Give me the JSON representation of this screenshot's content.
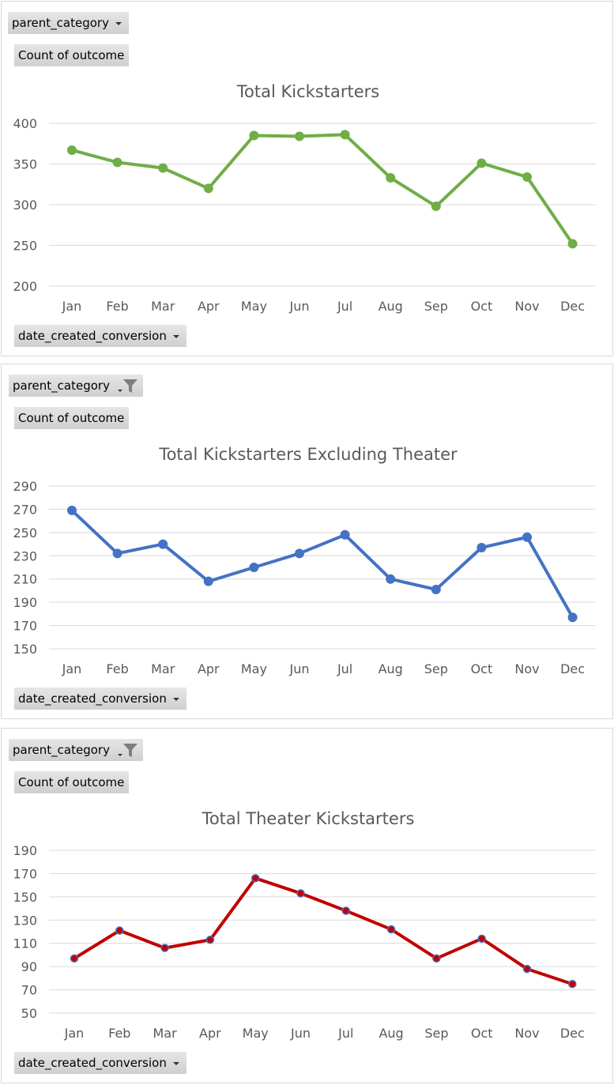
{
  "filters": {
    "parent_category": "parent_category",
    "count": "Count of outcome",
    "date": "date_created_conversion"
  },
  "chart_data": [
    {
      "type": "line",
      "title": "Total Kickstarters",
      "color": "#70ad47",
      "marker_fill": "#70ad47",
      "marker_stroke": "#70ad47",
      "filtered": false,
      "categories": [
        "Jan",
        "Feb",
        "Mar",
        "Apr",
        "May",
        "Jun",
        "Jul",
        "Aug",
        "Sep",
        "Oct",
        "Nov",
        "Dec"
      ],
      "values": [
        367,
        352,
        345,
        320,
        385,
        384,
        386,
        333,
        298,
        351,
        334,
        252
      ],
      "ylim": [
        200,
        400
      ],
      "yticks": [
        200,
        250,
        300,
        350,
        400
      ],
      "grid": true,
      "legend": "none"
    },
    {
      "type": "line",
      "title": "Total Kickstarters Excluding Theater",
      "color": "#4472c4",
      "marker_fill": "#4472c4",
      "marker_stroke": "#4472c4",
      "filtered": true,
      "categories": [
        "Jan",
        "Feb",
        "Mar",
        "Apr",
        "May",
        "Jun",
        "Jul",
        "Aug",
        "Sep",
        "Oct",
        "Nov",
        "Dec"
      ],
      "values": [
        269,
        232,
        240,
        208,
        220,
        232,
        248,
        210,
        201,
        237,
        246,
        177
      ],
      "ylim": [
        150,
        290
      ],
      "yticks": [
        150,
        170,
        190,
        210,
        230,
        250,
        270,
        290
      ],
      "grid": true,
      "legend": "none"
    },
    {
      "type": "line",
      "title": "Total Theater Kickstarters",
      "color": "#c00000",
      "marker_fill": "#c00000",
      "marker_stroke": "#4472c4",
      "filtered": true,
      "categories": [
        "Jan",
        "Feb",
        "Mar",
        "Apr",
        "May",
        "Jun",
        "Jul",
        "Aug",
        "Sep",
        "Oct",
        "Nov",
        "Dec"
      ],
      "values": [
        97,
        121,
        106,
        113,
        166,
        153,
        138,
        122,
        97,
        114,
        88,
        75
      ],
      "ylim": [
        50,
        190
      ],
      "yticks": [
        50,
        70,
        90,
        110,
        130,
        150,
        170,
        190
      ],
      "grid": true,
      "legend": "none"
    }
  ]
}
